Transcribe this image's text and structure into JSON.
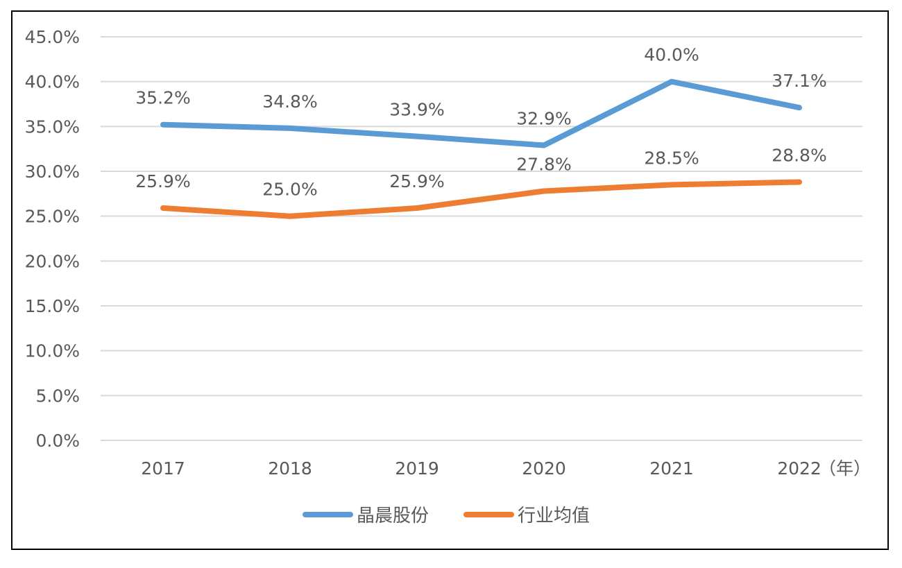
{
  "chart_data": {
    "type": "line",
    "title": "",
    "xlabel": "",
    "ylabel": "",
    "x_unit_label": "（年）",
    "categories": [
      "2017",
      "2018",
      "2019",
      "2020",
      "2021",
      "2022"
    ],
    "ylim": [
      0,
      45
    ],
    "y_ticks": [
      0,
      5,
      10,
      15,
      20,
      25,
      30,
      35,
      40,
      45
    ],
    "y_tick_labels": [
      "0.0%",
      "5.0%",
      "10.0%",
      "15.0%",
      "20.0%",
      "25.0%",
      "30.0%",
      "35.0%",
      "40.0%",
      "45.0%"
    ],
    "grid": true,
    "legend_position": "bottom",
    "series": [
      {
        "name": "晶晨股份",
        "color": "#5B9BD5",
        "values": [
          35.2,
          34.8,
          33.9,
          32.9,
          40.0,
          37.1
        ],
        "labels": [
          "35.2%",
          "34.8%",
          "33.9%",
          "32.9%",
          "40.0%",
          "37.1%"
        ]
      },
      {
        "name": "行业均值",
        "color": "#ED7D31",
        "values": [
          25.9,
          25.0,
          25.9,
          27.8,
          28.5,
          28.8
        ],
        "labels": [
          "25.9%",
          "25.0%",
          "25.9%",
          "27.8%",
          "28.5%",
          "28.8%"
        ]
      }
    ]
  }
}
